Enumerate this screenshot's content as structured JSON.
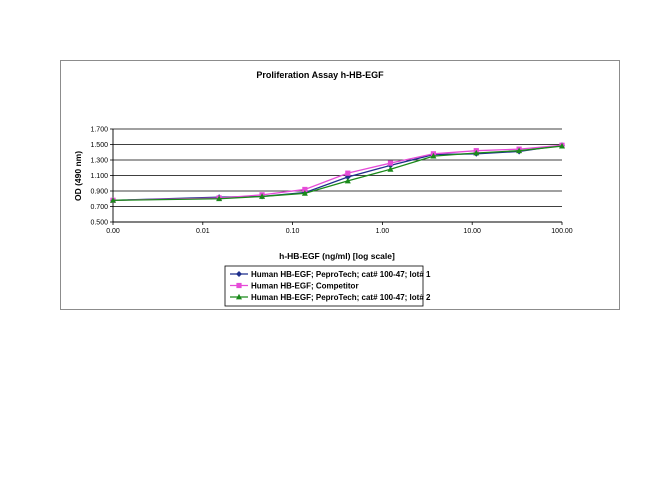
{
  "chart_data": {
    "type": "line",
    "title": "Proliferation Assay h-HB-EGF",
    "xlabel": "h-HB-EGF (ng/ml) [log scale]",
    "ylabel": "OD (490 nm)",
    "x_scale": "log",
    "xlim": [
      0.001,
      100
    ],
    "ylim": [
      0.5,
      1.7
    ],
    "x_tick_values": [
      0.001,
      0.01,
      0.1,
      1,
      10,
      100
    ],
    "x_tick_labels": [
      "0.00",
      "0.01",
      "0.10",
      "1.00",
      "10.00",
      "100.00"
    ],
    "y_tick_values": [
      0.5,
      0.7,
      0.9,
      1.1,
      1.3,
      1.5,
      1.7
    ],
    "y_tick_labels": [
      "0.500",
      "0.700",
      "0.900",
      "1.100",
      "1.300",
      "1.500",
      "1.700"
    ],
    "grid": "horizontal",
    "legend_position": "bottom",
    "x": [
      0.001,
      0.0152,
      0.0457,
      0.137,
      0.412,
      1.23,
      3.7,
      11.1,
      33.3,
      100
    ],
    "series": [
      {
        "name": "Human HB-EGF; PeproTech; cat# 100-47; lot# 1",
        "color": "#1f2f8c",
        "marker": "diamond",
        "values": [
          0.78,
          0.82,
          0.83,
          0.88,
          1.08,
          1.23,
          1.37,
          1.38,
          1.41,
          1.49
        ]
      },
      {
        "name": "Human HB-EGF; Competitor",
        "color": "#e64bd8",
        "marker": "square",
        "values": [
          0.78,
          0.81,
          0.85,
          0.92,
          1.13,
          1.26,
          1.38,
          1.42,
          1.44,
          1.49
        ]
      },
      {
        "name": "Human HB-EGF; PeproTech; cat# 100-47; lot# 2",
        "color": "#1a8a1a",
        "marker": "triangle",
        "values": [
          0.78,
          0.8,
          0.83,
          0.87,
          1.03,
          1.18,
          1.35,
          1.39,
          1.42,
          1.48
        ]
      }
    ]
  }
}
